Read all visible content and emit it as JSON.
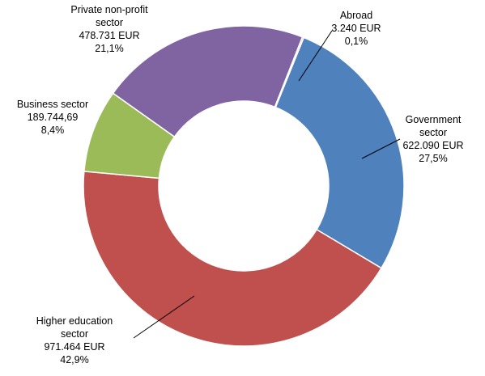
{
  "chart_data": {
    "type": "pie",
    "variant": "donut",
    "slices": [
      {
        "label": [
          "Government",
          "sector"
        ],
        "amount": "622.090 EUR",
        "percent_text": "27,5%",
        "value": 622090,
        "color": "#4F81BD"
      },
      {
        "label": [
          "Higher education",
          "sector"
        ],
        "amount": "971.464 EUR",
        "percent_text": "42,9%",
        "value": 971464,
        "color": "#C0504D"
      },
      {
        "label": [
          "Business sector"
        ],
        "amount": "189.744,69",
        "percent_text": "8,4%",
        "value": 189744.69,
        "color": "#9BBB59"
      },
      {
        "label": [
          "Private non-profit",
          "sector"
        ],
        "amount": "478.731 EUR",
        "percent_text": "21,1%",
        "value": 478731,
        "color": "#8064A2"
      },
      {
        "label": [
          "Abroad"
        ],
        "amount": "3.240 EUR",
        "percent_text": "0,1%",
        "value": 3240,
        "color": "#F79646"
      }
    ]
  }
}
